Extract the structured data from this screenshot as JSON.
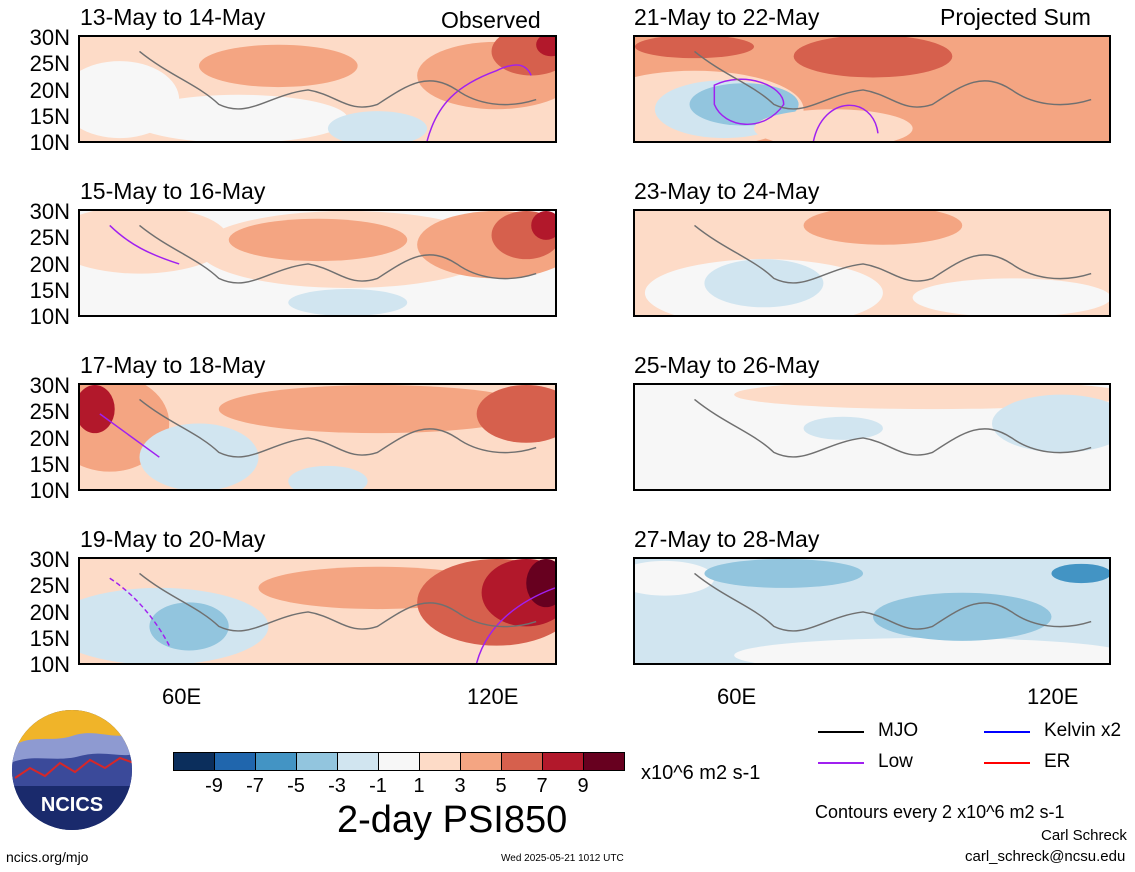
{
  "header": {
    "observed_label": "Observed",
    "projected_label": "Projected Sum"
  },
  "panels": [
    {
      "title": "13-May to 14-May"
    },
    {
      "title": "15-May to 16-May"
    },
    {
      "title": "17-May to 18-May"
    },
    {
      "title": "19-May to 20-May"
    },
    {
      "title": "21-May to 22-May"
    },
    {
      "title": "23-May to 24-May"
    },
    {
      "title": "25-May to 26-May"
    },
    {
      "title": "27-May to 28-May"
    }
  ],
  "lat_labels": [
    "30N",
    "25N",
    "20N",
    "15N",
    "10N"
  ],
  "lon_labels": [
    "60E",
    "120E"
  ],
  "colorbar": {
    "labels": [
      "-9",
      "-7",
      "-5",
      "-3",
      "-1",
      "1",
      "3",
      "5",
      "7",
      "9"
    ],
    "colors": [
      "#0b2e5c",
      "#2066ad",
      "#4394c4",
      "#92c5de",
      "#d1e5f0",
      "#f7f7f7",
      "#fddbc7",
      "#f4a582",
      "#d6604d",
      "#b2182b",
      "#67001f"
    ],
    "units": "x10^6 m2 s-1"
  },
  "main_title": "2-day PSI850",
  "legend": {
    "mjo": "MJO",
    "low": "Low",
    "kelvin": "Kelvin x2",
    "er": "ER",
    "colors": {
      "mjo": "#000000",
      "low": "#a020f0",
      "kelvin": "#0000ff",
      "er": "#ff0000"
    }
  },
  "contour_note": "Contours every 2 x10^6 m2 s-1",
  "author": "Carl Schreck",
  "email": "carl_schreck@ncsu.edu",
  "url": "ncics.org/mjo",
  "timestamp": "Wed 2025-05-21 1012 UTC",
  "logo_text": "NCICS"
}
